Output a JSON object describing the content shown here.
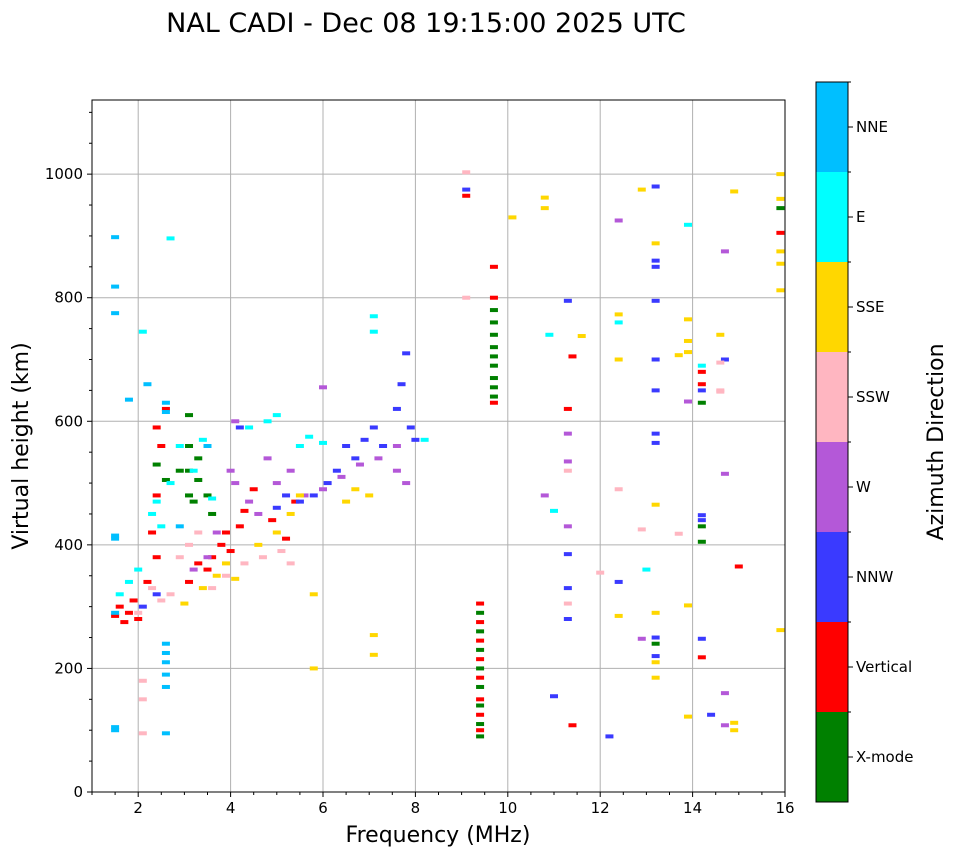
{
  "chart_data": {
    "type": "scatter",
    "title": "NAL CADI - Dec 08 19:15:00 2025 UTC",
    "xlabel": "Frequency (MHz)",
    "ylabel": "Virtual height (km)",
    "xlim": [
      1,
      16
    ],
    "ylim": [
      0,
      1120
    ],
    "xticks": [
      2,
      4,
      6,
      8,
      10,
      12,
      14,
      16
    ],
    "yticks": [
      0,
      200,
      400,
      600,
      800,
      1000
    ],
    "grid": true,
    "colorbar": {
      "title": "Azimuth Direction",
      "categories": [
        {
          "name": "X-mode",
          "color": "#008000"
        },
        {
          "name": "Vertical",
          "color": "#ff0000"
        },
        {
          "name": "NNW",
          "color": "#3a3aff"
        },
        {
          "name": "W",
          "color": "#b458d8"
        },
        {
          "name": "SSW",
          "color": "#ffb6c1"
        },
        {
          "name": "SSE",
          "color": "#ffd700"
        },
        {
          "name": "E",
          "color": "#00ffff"
        },
        {
          "name": "NNE",
          "color": "#00bfff"
        }
      ]
    },
    "series": [
      {
        "name": "X-mode",
        "points": [
          [
            3.1,
            480
          ],
          [
            3.1,
            520
          ],
          [
            3.2,
            470
          ],
          [
            3.3,
            505
          ],
          [
            3.1,
            560
          ],
          [
            3.3,
            540
          ],
          [
            2.9,
            520
          ],
          [
            3.1,
            610
          ],
          [
            3.5,
            480
          ],
          [
            3.6,
            450
          ],
          [
            2.4,
            530
          ],
          [
            2.6,
            505
          ],
          [
            9.4,
            90
          ],
          [
            9.4,
            110
          ],
          [
            9.4,
            140
          ],
          [
            9.4,
            170
          ],
          [
            9.4,
            200
          ],
          [
            9.4,
            230
          ],
          [
            9.4,
            260
          ],
          [
            9.4,
            290
          ],
          [
            9.7,
            640
          ],
          [
            9.7,
            655
          ],
          [
            9.7,
            670
          ],
          [
            9.7,
            690
          ],
          [
            9.7,
            705
          ],
          [
            9.7,
            720
          ],
          [
            9.7,
            740
          ],
          [
            9.7,
            760
          ],
          [
            9.7,
            780
          ],
          [
            14.2,
            405
          ],
          [
            14.2,
            430
          ],
          [
            14.2,
            630
          ],
          [
            13.2,
            240
          ],
          [
            15.9,
            945
          ]
        ]
      },
      {
        "name": "Vertical",
        "points": [
          [
            1.5,
            285
          ],
          [
            1.6,
            300
          ],
          [
            1.7,
            275
          ],
          [
            1.8,
            290
          ],
          [
            1.9,
            310
          ],
          [
            2.0,
            280
          ],
          [
            2.2,
            340
          ],
          [
            2.4,
            380
          ],
          [
            2.3,
            420
          ],
          [
            2.4,
            480
          ],
          [
            2.4,
            590
          ],
          [
            2.5,
            560
          ],
          [
            2.6,
            620
          ],
          [
            3.1,
            340
          ],
          [
            3.3,
            370
          ],
          [
            3.5,
            360
          ],
          [
            3.6,
            380
          ],
          [
            3.8,
            400
          ],
          [
            3.9,
            420
          ],
          [
            4.0,
            390
          ],
          [
            4.2,
            430
          ],
          [
            4.3,
            455
          ],
          [
            4.5,
            490
          ],
          [
            4.9,
            440
          ],
          [
            5.2,
            410
          ],
          [
            5.4,
            470
          ],
          [
            9.1,
            965
          ],
          [
            9.4,
            100
          ],
          [
            9.4,
            125
          ],
          [
            9.4,
            150
          ],
          [
            9.4,
            185
          ],
          [
            9.4,
            215
          ],
          [
            9.4,
            245
          ],
          [
            9.4,
            275
          ],
          [
            9.4,
            305
          ],
          [
            9.7,
            630
          ],
          [
            9.7,
            800
          ],
          [
            9.7,
            850
          ],
          [
            11.3,
            620
          ],
          [
            11.4,
            705
          ],
          [
            11.4,
            108
          ],
          [
            14.2,
            218
          ],
          [
            14.2,
            660
          ],
          [
            14.2,
            680
          ],
          [
            15.0,
            365
          ],
          [
            15.9,
            905
          ]
        ]
      },
      {
        "name": "NNW",
        "points": [
          [
            2.1,
            300
          ],
          [
            2.4,
            320
          ],
          [
            4.2,
            590
          ],
          [
            5.0,
            460
          ],
          [
            5.2,
            480
          ],
          [
            5.5,
            470
          ],
          [
            5.8,
            480
          ],
          [
            6.1,
            500
          ],
          [
            6.3,
            520
          ],
          [
            6.5,
            560
          ],
          [
            6.7,
            540
          ],
          [
            6.9,
            570
          ],
          [
            7.1,
            590
          ],
          [
            7.3,
            560
          ],
          [
            7.6,
            620
          ],
          [
            7.7,
            660
          ],
          [
            7.8,
            710
          ],
          [
            7.9,
            590
          ],
          [
            8.0,
            570
          ],
          [
            9.1,
            975
          ],
          [
            11.3,
            385
          ],
          [
            11.3,
            330
          ],
          [
            11.3,
            280
          ],
          [
            11.0,
            155
          ],
          [
            12.2,
            90
          ],
          [
            12.4,
            340
          ],
          [
            13.2,
            700
          ],
          [
            13.2,
            650
          ],
          [
            13.2,
            580
          ],
          [
            13.2,
            565
          ],
          [
            13.2,
            850
          ],
          [
            13.2,
            860
          ],
          [
            13.2,
            795
          ],
          [
            13.2,
            980
          ],
          [
            13.2,
            250
          ],
          [
            13.2,
            220
          ],
          [
            14.2,
            440
          ],
          [
            14.2,
            448
          ],
          [
            14.2,
            650
          ],
          [
            14.2,
            248
          ],
          [
            14.4,
            125
          ],
          [
            14.7,
            700
          ],
          [
            11.3,
            795
          ]
        ]
      },
      {
        "name": "W",
        "points": [
          [
            3.2,
            360
          ],
          [
            3.5,
            380
          ],
          [
            3.7,
            420
          ],
          [
            4.0,
            520
          ],
          [
            4.1,
            500
          ],
          [
            4.1,
            600
          ],
          [
            4.4,
            470
          ],
          [
            4.6,
            450
          ],
          [
            4.8,
            540
          ],
          [
            5.0,
            500
          ],
          [
            5.3,
            520
          ],
          [
            5.6,
            480
          ],
          [
            6.0,
            490
          ],
          [
            6.4,
            510
          ],
          [
            6.8,
            530
          ],
          [
            7.2,
            540
          ],
          [
            7.6,
            520
          ],
          [
            7.8,
            500
          ],
          [
            7.6,
            560
          ],
          [
            10.8,
            480
          ],
          [
            11.3,
            430
          ],
          [
            11.3,
            535
          ],
          [
            11.3,
            580
          ],
          [
            12.4,
            925
          ],
          [
            12.9,
            248
          ],
          [
            13.9,
            632
          ],
          [
            14.7,
            875
          ],
          [
            14.7,
            515
          ],
          [
            14.7,
            160
          ],
          [
            14.7,
            108
          ],
          [
            6.0,
            655
          ]
        ]
      },
      {
        "name": "SSW",
        "points": [
          [
            2.0,
            290
          ],
          [
            2.1,
            180
          ],
          [
            2.1,
            150
          ],
          [
            2.1,
            95
          ],
          [
            2.3,
            330
          ],
          [
            2.5,
            310
          ],
          [
            2.7,
            320
          ],
          [
            2.9,
            380
          ],
          [
            3.1,
            400
          ],
          [
            3.3,
            420
          ],
          [
            3.6,
            330
          ],
          [
            3.9,
            350
          ],
          [
            4.3,
            370
          ],
          [
            4.7,
            380
          ],
          [
            5.1,
            390
          ],
          [
            5.3,
            370
          ],
          [
            9.1,
            1003
          ],
          [
            9.1,
            800
          ],
          [
            11.3,
            520
          ],
          [
            12.0,
            355
          ],
          [
            12.4,
            490
          ],
          [
            12.9,
            425
          ],
          [
            13.7,
            418
          ],
          [
            14.6,
            695
          ],
          [
            14.6,
            650
          ],
          [
            14.6,
            648
          ],
          [
            11.3,
            305
          ]
        ]
      },
      {
        "name": "SSE",
        "points": [
          [
            3.0,
            305
          ],
          [
            3.4,
            330
          ],
          [
            3.7,
            350
          ],
          [
            3.9,
            370
          ],
          [
            4.1,
            345
          ],
          [
            4.6,
            400
          ],
          [
            5.0,
            420
          ],
          [
            5.3,
            450
          ],
          [
            5.5,
            480
          ],
          [
            5.8,
            320
          ],
          [
            5.8,
            200
          ],
          [
            6.5,
            470
          ],
          [
            6.7,
            490
          ],
          [
            7.0,
            480
          ],
          [
            7.1,
            254
          ],
          [
            7.1,
            222
          ],
          [
            10.1,
            930
          ],
          [
            10.8,
            962
          ],
          [
            10.8,
            945
          ],
          [
            11.6,
            738
          ],
          [
            12.4,
            773
          ],
          [
            12.4,
            700
          ],
          [
            12.4,
            285
          ],
          [
            12.9,
            975
          ],
          [
            13.2,
            888
          ],
          [
            13.2,
            465
          ],
          [
            13.2,
            290
          ],
          [
            13.2,
            210
          ],
          [
            13.2,
            185
          ],
          [
            13.7,
            707
          ],
          [
            13.9,
            765
          ],
          [
            13.9,
            730
          ],
          [
            13.9,
            712
          ],
          [
            13.9,
            302
          ],
          [
            13.9,
            122
          ],
          [
            14.6,
            740
          ],
          [
            14.9,
            972
          ],
          [
            14.9,
            112
          ],
          [
            14.9,
            100
          ],
          [
            15.9,
            1000
          ],
          [
            15.9,
            960
          ],
          [
            15.9,
            875
          ],
          [
            15.9,
            855
          ],
          [
            15.9,
            812
          ],
          [
            15.9,
            262
          ]
        ]
      },
      {
        "name": "E",
        "points": [
          [
            1.6,
            320
          ],
          [
            1.8,
            340
          ],
          [
            2.0,
            360
          ],
          [
            2.3,
            450
          ],
          [
            2.4,
            470
          ],
          [
            2.5,
            430
          ],
          [
            2.7,
            500
          ],
          [
            2.9,
            560
          ],
          [
            3.2,
            520
          ],
          [
            3.4,
            570
          ],
          [
            3.6,
            475
          ],
          [
            4.4,
            590
          ],
          [
            4.8,
            600
          ],
          [
            5.0,
            610
          ],
          [
            5.5,
            560
          ],
          [
            5.7,
            575
          ],
          [
            6.0,
            565
          ],
          [
            7.1,
            770
          ],
          [
            7.1,
            745
          ],
          [
            8.2,
            570
          ],
          [
            11.0,
            455
          ],
          [
            10.9,
            740
          ],
          [
            12.4,
            760
          ],
          [
            13.0,
            360
          ],
          [
            13.9,
            918
          ],
          [
            14.2,
            690
          ],
          [
            2.7,
            896
          ],
          [
            2.1,
            745
          ]
        ]
      },
      {
        "name": "NNE",
        "points": [
          [
            1.5,
            290
          ],
          [
            1.5,
            410
          ],
          [
            1.5,
            415
          ],
          [
            1.5,
            775
          ],
          [
            1.5,
            818
          ],
          [
            1.5,
            898
          ],
          [
            1.5,
            100
          ],
          [
            1.5,
            105
          ],
          [
            1.8,
            635
          ],
          [
            2.2,
            660
          ],
          [
            2.6,
            170
          ],
          [
            2.6,
            190
          ],
          [
            2.6,
            210
          ],
          [
            2.6,
            225
          ],
          [
            2.6,
            240
          ],
          [
            2.6,
            95
          ],
          [
            2.6,
            630
          ],
          [
            2.6,
            615
          ],
          [
            2.9,
            430
          ],
          [
            3.5,
            560
          ]
        ]
      }
    ]
  }
}
